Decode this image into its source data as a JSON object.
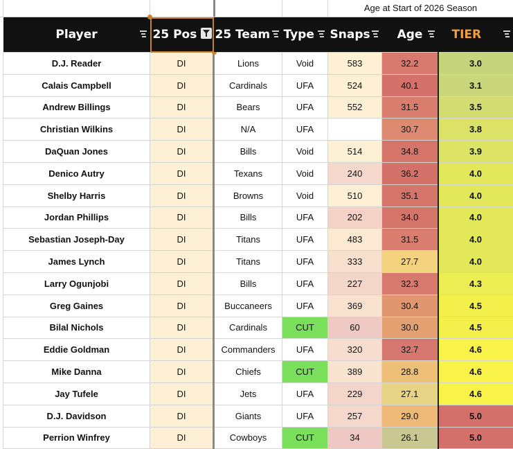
{
  "caption": {
    "age_note": "Age at Start of 2026 Season"
  },
  "headers": {
    "player": "Player",
    "pos": "25 Pos",
    "team": "25 Team",
    "type": "Type",
    "snaps": "Snaps",
    "age": "Age",
    "tier": "TIER"
  },
  "colors": {
    "header_bg": "#111111",
    "tier_header_text": "#f0a040",
    "pos_fill": "#fdf0d4",
    "cut_fill": "#7ae05c",
    "selection_outline": "#c8832c"
  },
  "rows": [
    {
      "player": "D.J. Reader",
      "pos": "DI",
      "team": "Lions",
      "type": "Void",
      "snaps": "583",
      "age": "32.2",
      "tier": "3.0",
      "snaps_bg": "#fdf0d4",
      "age_bg": "#d77a6d",
      "tier_bg": "#c6d47c"
    },
    {
      "player": "Calais Campbell",
      "pos": "DI",
      "team": "Cardinals",
      "type": "UFA",
      "snaps": "524",
      "age": "40.1",
      "tier": "3.1",
      "snaps_bg": "#fdf0d4",
      "age_bg": "#d4716a",
      "tier_bg": "#c9d67a"
    },
    {
      "player": "Andrew Billings",
      "pos": "DI",
      "team": "Bears",
      "type": "UFA",
      "snaps": "552",
      "age": "31.5",
      "tier": "3.5",
      "snaps_bg": "#fdf0d4",
      "age_bg": "#d97d6e",
      "tier_bg": "#d3dc70"
    },
    {
      "player": "Christian Wilkins",
      "pos": "DI",
      "team": "N/A",
      "type": "UFA",
      "snaps": "",
      "age": "30.7",
      "tier": "3.8",
      "snaps_bg": "#ffffff",
      "age_bg": "#dd8a70",
      "tier_bg": "#dbe266"
    },
    {
      "player": "DaQuan Jones",
      "pos": "DI",
      "team": "Bills",
      "type": "Void",
      "snaps": "514",
      "age": "34.8",
      "tier": "3.9",
      "snaps_bg": "#fdf0d4",
      "age_bg": "#d57468",
      "tier_bg": "#dde464"
    },
    {
      "player": "Denico Autry",
      "pos": "DI",
      "team": "Texans",
      "type": "Void",
      "snaps": "240",
      "age": "36.2",
      "tier": "4.0",
      "snaps_bg": "#f5d8cc",
      "age_bg": "#d4726a",
      "tier_bg": "#e3e85a"
    },
    {
      "player": "Shelby Harris",
      "pos": "DI",
      "team": "Browns",
      "type": "Void",
      "snaps": "510",
      "age": "35.1",
      "tier": "4.0",
      "snaps_bg": "#fdf0d4",
      "age_bg": "#d57468",
      "tier_bg": "#e3e85a"
    },
    {
      "player": "Jordan Phillips",
      "pos": "DI",
      "team": "Bills",
      "type": "UFA",
      "snaps": "202",
      "age": "34.0",
      "tier": "4.0",
      "snaps_bg": "#f3d2c8",
      "age_bg": "#d57468",
      "tier_bg": "#e3e85a"
    },
    {
      "player": "Sebastian Joseph-Day",
      "pos": "DI",
      "team": "Titans",
      "type": "UFA",
      "snaps": "483",
      "age": "31.5",
      "tier": "4.0",
      "snaps_bg": "#fbe9d2",
      "age_bg": "#d97d6e",
      "tier_bg": "#e3e85a"
    },
    {
      "player": "James Lynch",
      "pos": "DI",
      "team": "Titans",
      "type": "UFA",
      "snaps": "333",
      "age": "27.7",
      "tier": "4.0",
      "snaps_bg": "#f8e0cf",
      "age_bg": "#f2d27c",
      "tier_bg": "#e3e85a"
    },
    {
      "player": "Larry Ogunjobi",
      "pos": "DI",
      "team": "Bills",
      "type": "UFA",
      "snaps": "227",
      "age": "32.3",
      "tier": "4.3",
      "snaps_bg": "#f4d5ca",
      "age_bg": "#d77a6d",
      "tier_bg": "#ebed52"
    },
    {
      "player": "Greg Gaines",
      "pos": "DI",
      "team": "Buccaneers",
      "type": "UFA",
      "snaps": "369",
      "age": "30.4",
      "tier": "4.5",
      "snaps_bg": "#f9e3d0",
      "age_bg": "#e0976f",
      "tier_bg": "#f3f04c"
    },
    {
      "player": "Bilal Nichols",
      "pos": "DI",
      "team": "Cardinals",
      "type": "CUT",
      "snaps": "60",
      "age": "30.0",
      "tier": "4.5",
      "snaps_bg": "#efcac4",
      "age_bg": "#e3a071",
      "tier_bg": "#f3f04c",
      "type_bg": "#7ae05c"
    },
    {
      "player": "Eddie Goldman",
      "pos": "DI",
      "team": "Commanders",
      "type": "UFA",
      "snaps": "320",
      "age": "32.7",
      "tier": "4.6",
      "snaps_bg": "#f7ddce",
      "age_bg": "#d67770",
      "tier_bg": "#f9f248"
    },
    {
      "player": "Mike Danna",
      "pos": "DI",
      "team": "Chiefs",
      "type": "CUT",
      "snaps": "389",
      "age": "28.8",
      "tier": "4.6",
      "snaps_bg": "#f9e4d0",
      "age_bg": "#eec077",
      "tier_bg": "#f9f248",
      "type_bg": "#7ae05c"
    },
    {
      "player": "Jay Tufele",
      "pos": "DI",
      "team": "Jets",
      "type": "UFA",
      "snaps": "229",
      "age": "27.1",
      "tier": "4.6",
      "snaps_bg": "#f4d5ca",
      "age_bg": "#e6d484",
      "tier_bg": "#f9f248"
    },
    {
      "player": "D.J. Davidson",
      "pos": "DI",
      "team": "Giants",
      "type": "UFA",
      "snaps": "257",
      "age": "29.0",
      "tier": "5.0",
      "snaps_bg": "#f5d8cc",
      "age_bg": "#eeb876",
      "tier_bg": "#d4706a"
    },
    {
      "player": "Perrion Winfrey",
      "pos": "DI",
      "team": "Cowboys",
      "type": "CUT",
      "snaps": "34",
      "age": "26.1",
      "tier": "5.0",
      "snaps_bg": "#eec8c3",
      "age_bg": "#c9c792",
      "tier_bg": "#d4706a",
      "type_bg": "#7ae05c"
    }
  ]
}
